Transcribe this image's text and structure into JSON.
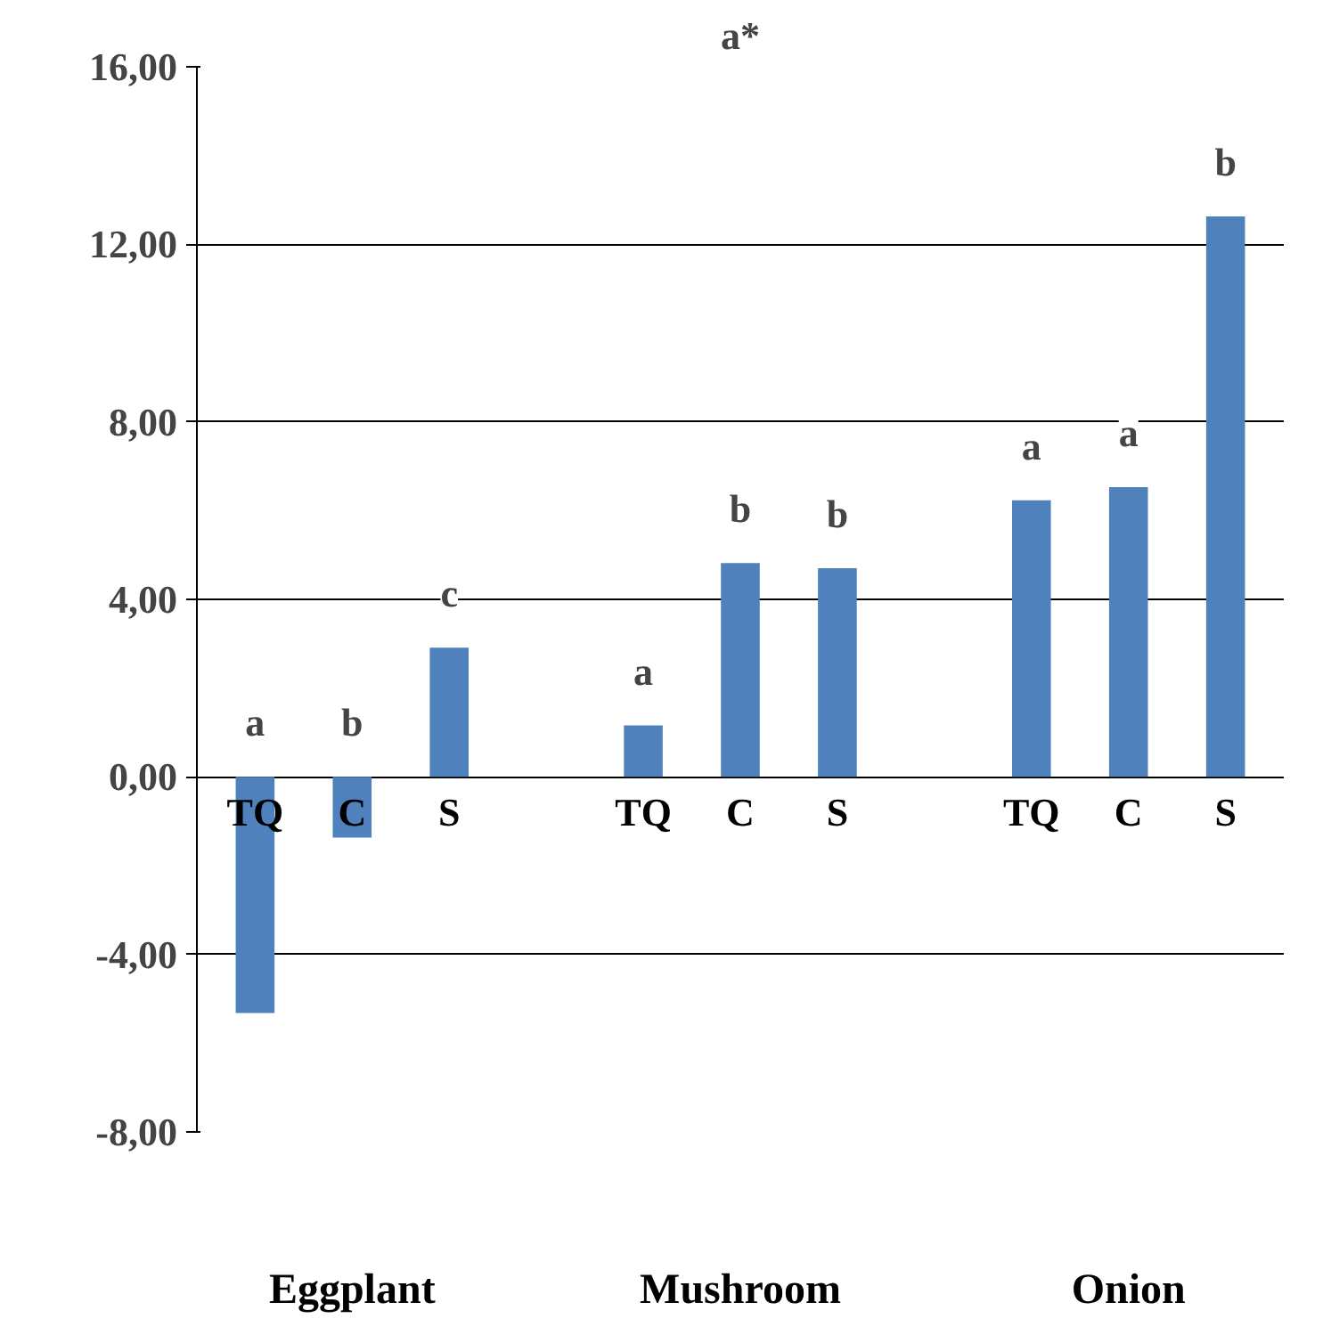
{
  "chart_data": {
    "type": "bar",
    "title": "a*",
    "categories": [
      "TQ",
      "C",
      "S",
      null,
      "TQ",
      "C",
      "S",
      null,
      "TQ",
      "C",
      "S"
    ],
    "values": [
      -5.32,
      -1.37,
      2.91,
      null,
      1.16,
      4.82,
      4.7,
      null,
      6.23,
      6.53,
      12.63
    ],
    "value_labels": [
      "a",
      "b",
      "c",
      null,
      "a",
      "b",
      "b",
      null,
      "a",
      "a",
      "b"
    ],
    "color": "#4f81bd",
    "ylim": [
      -8,
      16
    ],
    "yticks": [
      {
        "value": -8,
        "label": "-8,00"
      },
      {
        "value": -4,
        "label": "-4,00"
      },
      {
        "value": 0,
        "label": "0,00"
      },
      {
        "value": 4,
        "label": "4,00"
      },
      {
        "value": 8,
        "label": "8,00"
      },
      {
        "value": 12,
        "label": "12,00"
      },
      {
        "value": 16,
        "label": "16,00"
      }
    ],
    "grid": "y",
    "annotations": [
      "Eggplant",
      "Mushroom",
      "Onion"
    ]
  }
}
